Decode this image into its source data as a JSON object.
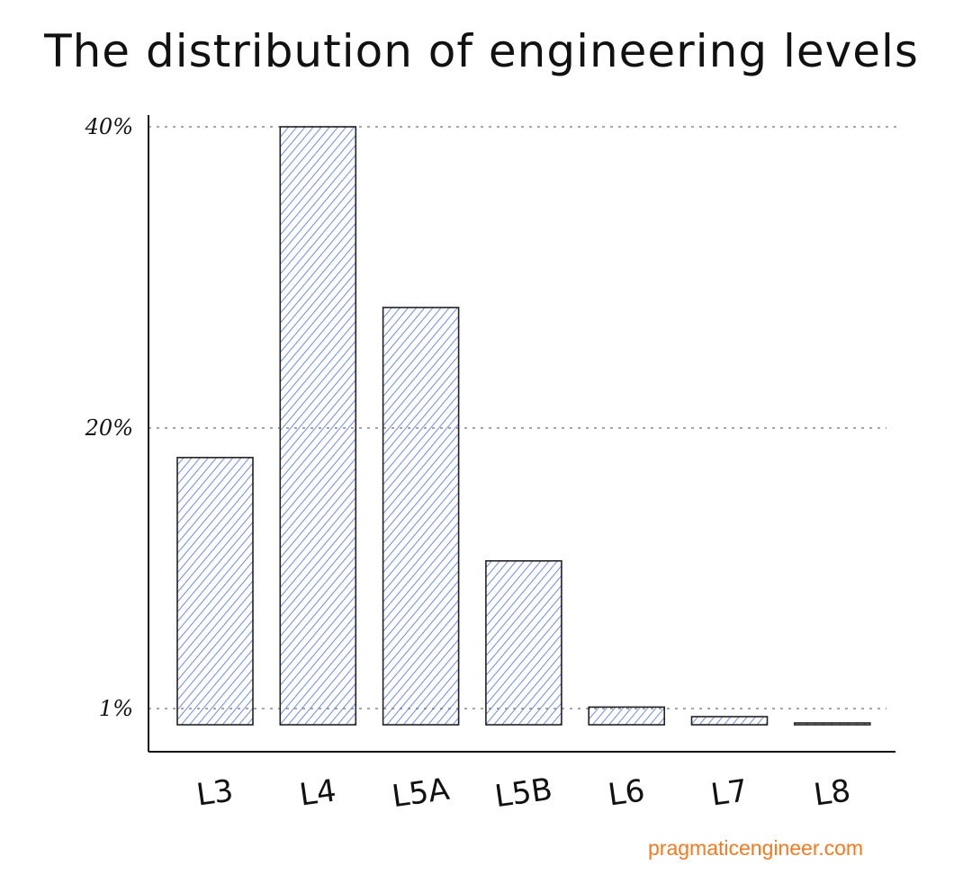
{
  "chart_data": {
    "type": "bar",
    "title": "The distribution of engineering levels",
    "categories": [
      "L3",
      "L4",
      "L5A",
      "L5B",
      "L6",
      "L7",
      "L8"
    ],
    "values": [
      18,
      40,
      28,
      11,
      1.1,
      0.5,
      0.05
    ],
    "y_ticks": [
      {
        "label": "40%",
        "value": 40
      },
      {
        "label": "20%",
        "value": 20
      },
      {
        "label": "1%",
        "value": 1
      }
    ],
    "grid": "dashed horizontal at tick marks",
    "legend": "none"
  },
  "colors": {
    "bar_fill": "#4a6ee0",
    "bar_outline": "#222222",
    "grid": "#888888",
    "source": "#f47a1f"
  },
  "source_text": "pragmaticengineer.com"
}
